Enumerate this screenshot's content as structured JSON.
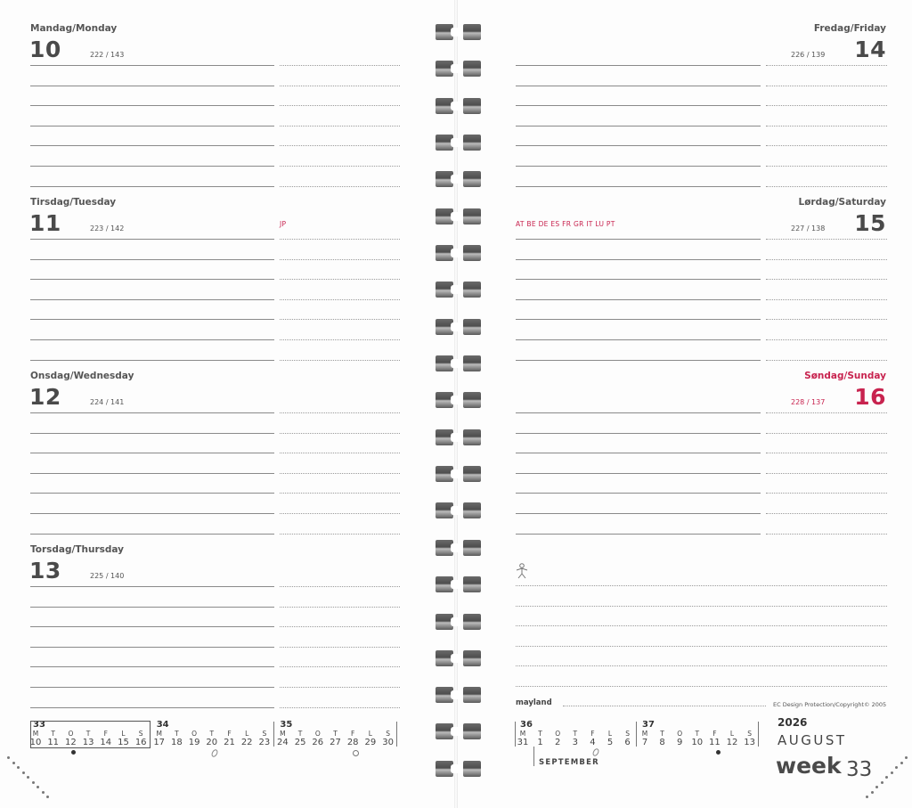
{
  "left_days": [
    {
      "name": "Mandag/Monday",
      "num": "10",
      "count": "222 / 143",
      "holiday": ""
    },
    {
      "name": "Tirsdag/Tuesday",
      "num": "11",
      "count": "223 / 142",
      "holiday": "JP"
    },
    {
      "name": "Onsdag/Wednesday",
      "num": "12",
      "count": "224 / 141",
      "holiday": ""
    },
    {
      "name": "Torsdag/Thursday",
      "num": "13",
      "count": "225 / 140",
      "holiday": ""
    }
  ],
  "right_days": [
    {
      "name": "Fredag/Friday",
      "num": "14",
      "count": "226 / 139",
      "holiday": ""
    },
    {
      "name": "Lørdag/Saturday",
      "num": "15",
      "count": "227 / 138",
      "holiday": "AT BE DE ES FR GR IT  LU PT"
    },
    {
      "name": "Søndag/Sunday",
      "num": "16",
      "count": "228 / 137",
      "holiday": ""
    }
  ],
  "footer": {
    "brand": "mayland",
    "copyright": "EC Design Protection/Copyright© 2005",
    "year": "2026",
    "month": "AUGUST",
    "week_word": "week",
    "week_number": "33",
    "next_month": "SEPTEMBER"
  },
  "icons": {
    "person": "person-icon",
    "moon_full": "full-moon-icon",
    "moon_new": "new-moon-icon",
    "moon_quarter": "quarter-moon-icon"
  },
  "colors": {
    "accent": "#c8234f",
    "text": "#4a4a4a"
  },
  "minical_left": [
    {
      "week": "33",
      "letters": [
        "M",
        "T",
        "O",
        "T",
        "F",
        "L",
        "S"
      ],
      "days": [
        "10",
        "11",
        "12",
        "13",
        "14",
        "15",
        "16"
      ],
      "boxed": true
    },
    {
      "week": "34",
      "letters": [
        "M",
        "T",
        "O",
        "T",
        "F",
        "L",
        "S"
      ],
      "days": [
        "17",
        "18",
        "19",
        "20",
        "21",
        "22",
        "23"
      ],
      "boxed": false
    },
    {
      "week": "35",
      "letters": [
        "M",
        "T",
        "O",
        "T",
        "F",
        "L",
        "S"
      ],
      "days": [
        "24",
        "25",
        "26",
        "27",
        "28",
        "29",
        "30"
      ],
      "boxed": false
    }
  ],
  "minical_right": [
    {
      "week": "36",
      "letters": [
        "M",
        "T",
        "O",
        "T",
        "F",
        "L",
        "S"
      ],
      "days": [
        "31",
        "1",
        "2",
        "3",
        "4",
        "5",
        "6"
      ],
      "boxed": false
    },
    {
      "week": "37",
      "letters": [
        "M",
        "T",
        "O",
        "T",
        "F",
        "L",
        "S"
      ],
      "days": [
        "7",
        "8",
        "9",
        "10",
        "11",
        "12",
        "13"
      ],
      "boxed": false
    }
  ]
}
